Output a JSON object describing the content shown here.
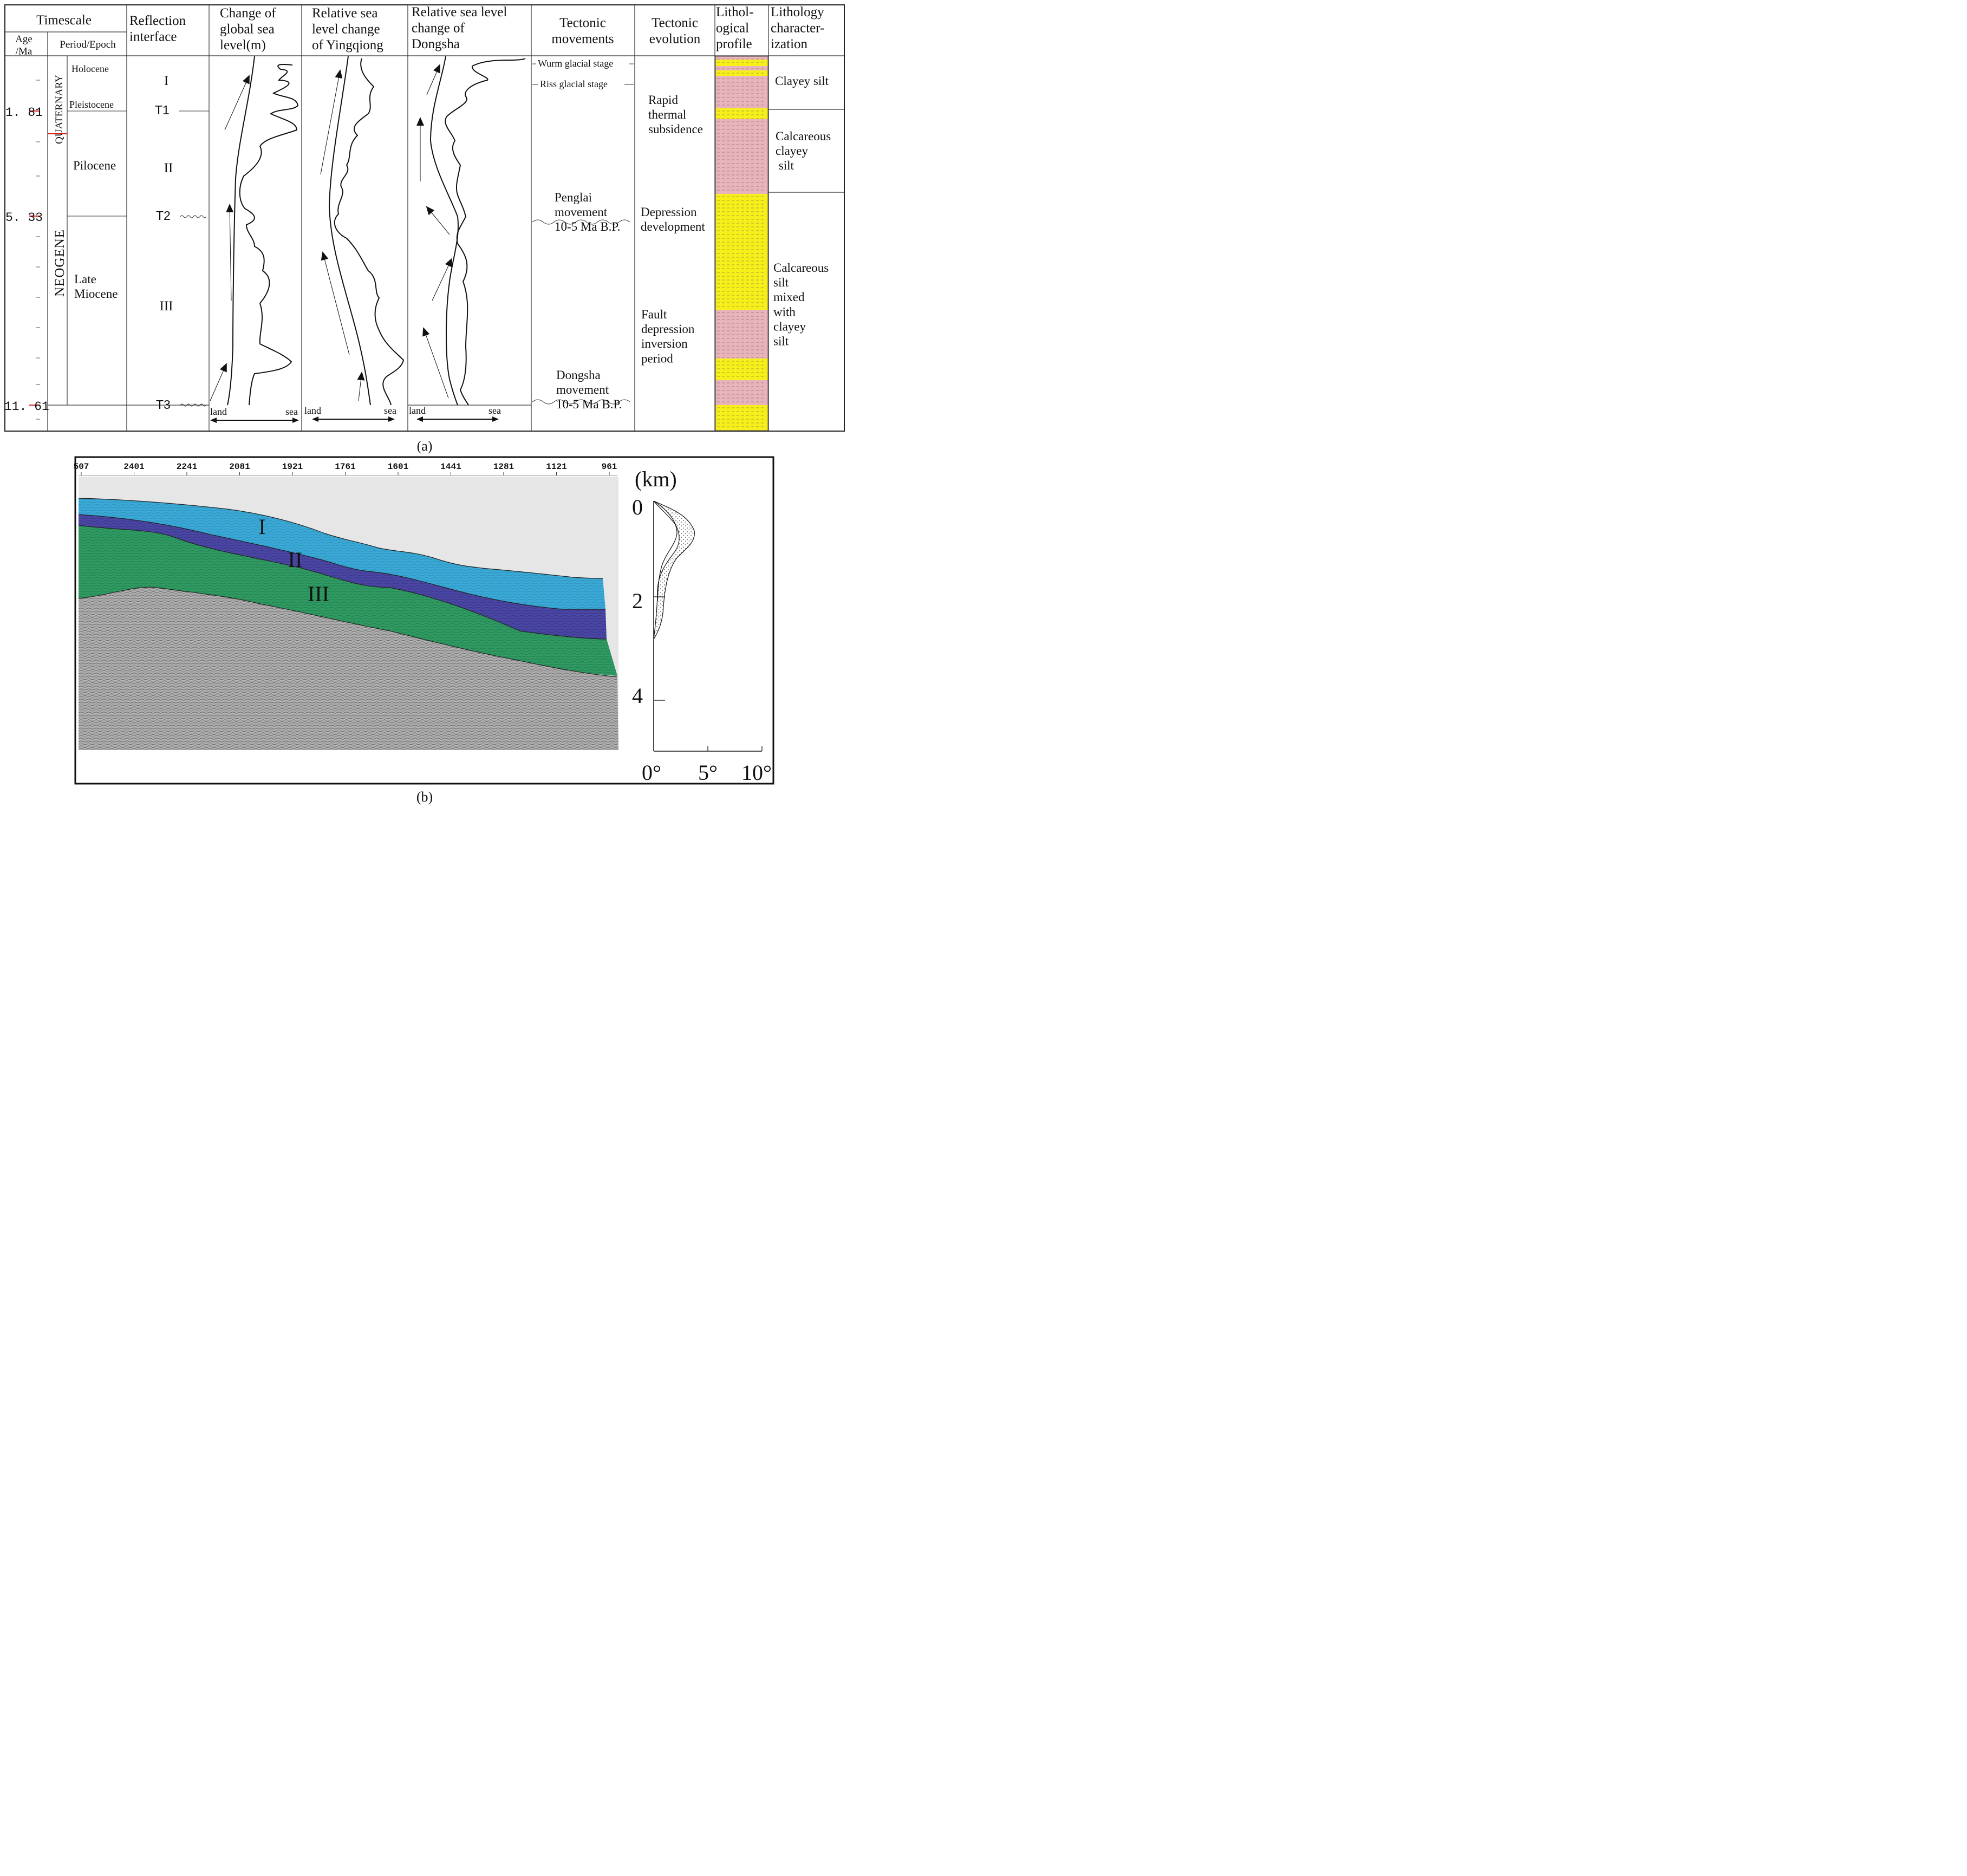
{
  "panel_a": {
    "caption": "(a)",
    "timescale": {
      "header": "Timescale",
      "age_header": "Age\n/Ma",
      "period_header": "Period/Epoch",
      "ages": [
        "1. 81",
        "5. 33",
        "11. 61"
      ],
      "periods": [
        "QUATERNARY",
        "NEOGENE"
      ],
      "epochs": [
        "Holocene",
        "Pleistocene",
        "Pilocene",
        "Late\nMiocene"
      ]
    },
    "reflection": {
      "header": "Reflection\ninterface",
      "sequences": [
        "I",
        "II",
        "III"
      ],
      "interfaces": [
        "T1",
        "T2",
        "T3"
      ]
    },
    "global_sea_level": {
      "header": "Change of\nglobal sea\nlevel(m)"
    },
    "yingqiong": {
      "header": "Relative  sea\nlevel change\nof Yingqiong",
      "land": "land",
      "sea": "sea"
    },
    "dongsha": {
      "header": "Relative  sea level\nchange of\nDongsha",
      "land": "land",
      "sea": "sea"
    },
    "global_axis": {
      "land": "land",
      "sea": "sea"
    },
    "tectonic_movements": {
      "header": "Tectonic\nmovements",
      "items": [
        "Wurm glacial stage",
        "Riss glacial stage",
        "Penglai\nmovement\n10-5 Ma B.P.",
        "Dongsha\nmovement\n10-5 Ma B.P."
      ]
    },
    "tectonic_evolution": {
      "header": "Tectonic\nevolution",
      "items": [
        "Rapid\nthermal\nsubsidence",
        "Depression\ndevelopment",
        "Fault\ndepression\ninversion\nperiod"
      ]
    },
    "lithological_profile": {
      "header": "Lithol-\nogical\nprofile",
      "colors": {
        "silt": "#f7ef1a",
        "clay": "#e9b3bb"
      }
    },
    "lithology_characterization": {
      "header": "Lithology\ncharacter-\nization",
      "items": [
        "Clayey silt",
        "Calcareous\nclayey\n silt",
        "Calcareous\nsilt\nmixed\nwith\nclayey\nsilt"
      ]
    }
  },
  "panel_b": {
    "caption": "(b)",
    "trace_ticks": [
      "507",
      "2401",
      "2241",
      "2081",
      "1921",
      "1761",
      "1601",
      "1441",
      "1281",
      "1121",
      "961"
    ],
    "unit_labels": [
      "I",
      "II",
      "III"
    ],
    "depth_unit": "(km)",
    "depth_ticks": [
      "0",
      "2",
      "4"
    ],
    "dip_ticks": [
      "0°",
      "5°",
      "10°"
    ],
    "colors": {
      "unit_I": "#3aa9d6",
      "unit_II": "#4a46a3",
      "unit_III": "#2f9a62",
      "basement": "#9a9a9a"
    }
  }
}
